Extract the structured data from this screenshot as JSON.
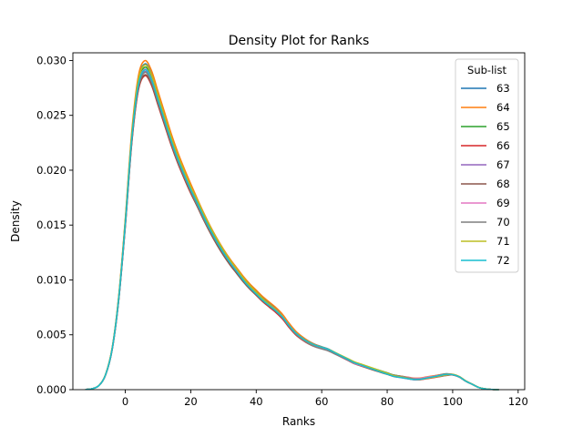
{
  "chart_data": {
    "type": "line",
    "title": "Density Plot for Ranks",
    "xlabel": "Ranks",
    "ylabel": "Density",
    "xlim": [
      -16,
      122
    ],
    "ylim": [
      0,
      0.0307
    ],
    "xticks": [
      0,
      20,
      40,
      60,
      80,
      100,
      120
    ],
    "yticks": [
      0.0,
      0.005,
      0.01,
      0.015,
      0.02,
      0.025,
      0.03
    ],
    "ytick_labels": [
      "0.000",
      "0.005",
      "0.010",
      "0.015",
      "0.020",
      "0.025",
      "0.030"
    ],
    "legend": {
      "title": "Sub-list",
      "position": "upper right"
    },
    "x": [
      -12,
      -10,
      -8,
      -6,
      -4,
      -2,
      0,
      2,
      4,
      6,
      8,
      10,
      12,
      14,
      16,
      18,
      20,
      22,
      24,
      26,
      28,
      30,
      32,
      34,
      36,
      38,
      40,
      42,
      44,
      46,
      48,
      50,
      52,
      54,
      56,
      58,
      60,
      62,
      64,
      66,
      68,
      70,
      72,
      74,
      76,
      78,
      80,
      82,
      84,
      86,
      88,
      90,
      92,
      94,
      96,
      98,
      100,
      102,
      104,
      106,
      108,
      110,
      112,
      114
    ],
    "base_density": [
      2e-05,
      0.0001,
      0.0004,
      0.0014,
      0.0038,
      0.0085,
      0.0155,
      0.0235,
      0.0285,
      0.0299,
      0.029,
      0.0271,
      0.0252,
      0.0233,
      0.0216,
      0.0201,
      0.0187,
      0.0174,
      0.0161,
      0.0149,
      0.0138,
      0.0128,
      0.0119,
      0.0111,
      0.0103,
      0.0096,
      0.009,
      0.0084,
      0.0079,
      0.0074,
      0.0068,
      0.006,
      0.0053,
      0.0048,
      0.0044,
      0.0041,
      0.0039,
      0.0037,
      0.0034,
      0.0031,
      0.0028,
      0.0025,
      0.0023,
      0.0021,
      0.0019,
      0.0017,
      0.0015,
      0.0013,
      0.0012,
      0.0011,
      0.001,
      0.001,
      0.0011,
      0.0012,
      0.0013,
      0.0014,
      0.0014,
      0.0012,
      0.0008,
      0.0005,
      0.0002,
      7e-05,
      2e-05,
      0.0
    ],
    "series": [
      {
        "name": "63",
        "color": "#1f77b4",
        "scale": 0.993
      },
      {
        "name": "64",
        "color": "#ff7f0e",
        "scale": 1.003
      },
      {
        "name": "65",
        "color": "#2ca02c",
        "scale": 0.983
      },
      {
        "name": "66",
        "color": "#d62728",
        "scale": 0.957
      },
      {
        "name": "67",
        "color": "#9467bd",
        "scale": 0.97
      },
      {
        "name": "68",
        "color": "#8c564b",
        "scale": 0.96
      },
      {
        "name": "69",
        "color": "#e377c2",
        "scale": 0.977
      },
      {
        "name": "70",
        "color": "#7f7f7f",
        "scale": 0.967
      },
      {
        "name": "71",
        "color": "#bcbd22",
        "scale": 0.99
      },
      {
        "name": "72",
        "color": "#17becf",
        "scale": 0.975
      }
    ]
  }
}
